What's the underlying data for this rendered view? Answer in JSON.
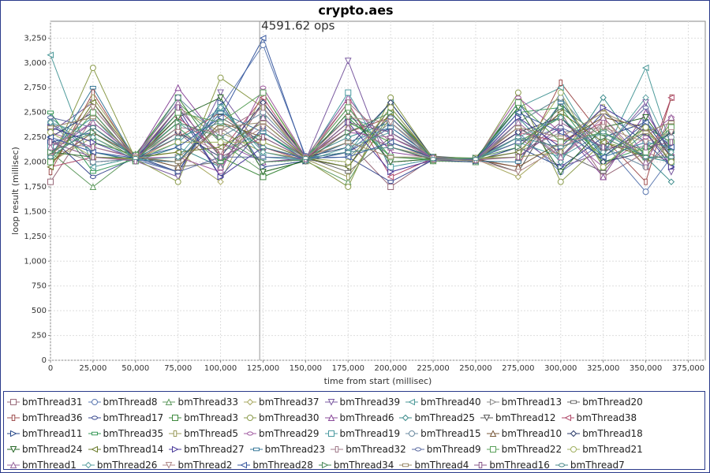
{
  "chart_data": {
    "type": "line",
    "title": "crypto.aes",
    "x_label": "time from start (millisec)",
    "y_label": "loop result (millisec)",
    "annotation": {
      "text": "4591.62 ops",
      "x": 123000
    },
    "grid": true,
    "xlim": [
      0,
      385000
    ],
    "ylim": [
      0,
      3420
    ],
    "xticks": [
      {
        "value": 0,
        "label": "0"
      },
      {
        "value": 25000,
        "label": "25,000"
      },
      {
        "value": 50000,
        "label": "50,000"
      },
      {
        "value": 75000,
        "label": "75,000"
      },
      {
        "value": 100000,
        "label": "100,000"
      },
      {
        "value": 125000,
        "label": "125,000"
      },
      {
        "value": 150000,
        "label": "150,000"
      },
      {
        "value": 175000,
        "label": "175,000"
      },
      {
        "value": 200000,
        "label": "200,000"
      },
      {
        "value": 225000,
        "label": "225,000"
      },
      {
        "value": 250000,
        "label": "250,000"
      },
      {
        "value": 275000,
        "label": "275,000"
      },
      {
        "value": 300000,
        "label": "300,000"
      },
      {
        "value": 325000,
        "label": "325,000"
      },
      {
        "value": 350000,
        "label": "350,000"
      },
      {
        "value": 375000,
        "label": "375,000"
      }
    ],
    "yticks": [
      0,
      250,
      500,
      750,
      {
        "value": 1000,
        "label": "1,000"
      },
      {
        "value": 1250,
        "label": "1,250"
      },
      {
        "value": 1500,
        "label": "1,500"
      },
      {
        "value": 1750,
        "label": "1,750"
      },
      {
        "value": 2000,
        "label": "2,000"
      },
      {
        "value": 2250,
        "label": "2,250"
      },
      {
        "value": 2500,
        "label": "2,500"
      },
      {
        "value": 2750,
        "label": "2,750"
      },
      {
        "value": 3000,
        "label": "3,000"
      },
      {
        "value": 3250,
        "label": "3,250"
      }
    ],
    "x": [
      0,
      25000,
      50000,
      75000,
      100000,
      125000,
      150000,
      175000,
      200000,
      225000,
      250000,
      275000,
      300000,
      325000,
      350000,
      365000
    ],
    "series": [
      {
        "name": "bmThread31",
        "color": "#9a6b7b",
        "values": [
          1800,
          2450,
          2050,
          2300,
          1950,
          2600,
          2030,
          2200,
          1750,
          2040,
          2010,
          2150,
          2500,
          1850,
          2100,
          2000
        ]
      },
      {
        "name": "bmThread8",
        "color": "#5b78b0",
        "values": [
          2400,
          2100,
          2020,
          1900,
          2550,
          3180,
          2060,
          2450,
          2300,
          2030,
          2020,
          2300,
          1900,
          2200,
          1700,
          2050
        ]
      },
      {
        "name": "bmThread33",
        "color": "#5f9a5f",
        "values": [
          2100,
          1750,
          2080,
          2600,
          2200,
          1900,
          2010,
          1800,
          2500,
          2010,
          2000,
          2400,
          2650,
          1950,
          2300,
          2100
        ]
      },
      {
        "name": "bmThread37",
        "color": "#a8a860",
        "values": [
          2000,
          2250,
          2040,
          2100,
          1800,
          2700,
          2050,
          2350,
          2150,
          2050,
          2030,
          1850,
          2200,
          2450,
          1950,
          2250
        ]
      },
      {
        "name": "bmThread39",
        "color": "#7a5aa0",
        "values": [
          2300,
          2600,
          2010,
          1850,
          2700,
          2100,
          2020,
          3020,
          1900,
          2020,
          2040,
          2250,
          1950,
          2100,
          2600,
          1900
        ]
      },
      {
        "name": "bmThread40",
        "color": "#4d9a9a",
        "values": [
          3080,
          1950,
          2050,
          2400,
          2100,
          2300,
          2040,
          2100,
          2600,
          2040,
          2010,
          2550,
          2750,
          2050,
          2950,
          2150
        ]
      },
      {
        "name": "bmThread13",
        "color": "#888888",
        "values": [
          2150,
          2000,
          2030,
          2050,
          2350,
          2000,
          2030,
          2550,
          2000,
          2030,
          2020,
          2100,
          2300,
          2350,
          2050,
          2000
        ]
      },
      {
        "name": "bmThread20",
        "color": "#6a6a6a",
        "values": [
          2050,
          2350,
          2060,
          1950,
          2000,
          2450,
          2050,
          1900,
          2250,
          2060,
          2030,
          2350,
          2100,
          1900,
          2400,
          2050
        ]
      },
      {
        "name": "bmThread36",
        "color": "#a05050",
        "values": [
          1900,
          2700,
          2020,
          2250,
          2500,
          2150,
          2010,
          2300,
          2450,
          2040,
          2020,
          1950,
          2800,
          2250,
          1800,
          2650
        ]
      },
      {
        "name": "bmThread17",
        "color": "#3a4a90",
        "values": [
          2250,
          1850,
          2040,
          2500,
          1850,
          2350,
          2040,
          2050,
          1800,
          2020,
          2000,
          2600,
          2050,
          2500,
          2200,
          1950
        ]
      },
      {
        "name": "bmThread3",
        "color": "#3f8a3f",
        "values": [
          2350,
          2200,
          2070,
          2650,
          2050,
          1850,
          2030,
          2400,
          2200,
          2050,
          2040,
          2200,
          2450,
          2050,
          2350,
          2200
        ]
      },
      {
        "name": "bmThread30",
        "color": "#8a9a4a",
        "values": [
          2000,
          2950,
          2030,
          1800,
          2850,
          2550,
          2020,
          1750,
          2650,
          2030,
          2010,
          2700,
          1800,
          2200,
          2100,
          2350
        ]
      },
      {
        "name": "bmThread6",
        "color": "#8a4a9a",
        "values": [
          2100,
          2400,
          2050,
          2750,
          2200,
          2000,
          2040,
          2650,
          2100,
          2040,
          2030,
          2050,
          2350,
          1850,
          2500,
          2100
        ]
      },
      {
        "name": "bmThread25",
        "color": "#3a8a8a",
        "values": [
          2450,
          2100,
          2010,
          2150,
          1950,
          2450,
          2050,
          2250,
          2400,
          2020,
          2020,
          2450,
          2000,
          2650,
          2050,
          1800
        ]
      },
      {
        "name": "bmThread12",
        "color": "#5a5a5a",
        "values": [
          2050,
          2550,
          2040,
          2000,
          2450,
          2200,
          2030,
          1950,
          2550,
          2030,
          2040,
          1900,
          2600,
          2100,
          2300,
          2000
        ]
      },
      {
        "name": "bmThread38",
        "color": "#b04a6a",
        "values": [
          1950,
          2050,
          2020,
          2450,
          2100,
          2650,
          2020,
          2600,
          1850,
          2040,
          2030,
          2300,
          2200,
          2400,
          1950,
          2650
        ]
      },
      {
        "name": "bmThread11",
        "color": "#2a4a8a",
        "values": [
          2200,
          2300,
          2060,
          1900,
          2600,
          1950,
          2010,
          2100,
          2350,
          2050,
          2010,
          2150,
          1950,
          2250,
          2400,
          2050
        ]
      },
      {
        "name": "bmThread35",
        "color": "#3a9a5a",
        "values": [
          2500,
          1900,
          2030,
          2350,
          2000,
          2300,
          2040,
          2450,
          2050,
          2030,
          2020,
          2500,
          2550,
          2000,
          2150,
          2300
        ]
      },
      {
        "name": "bmThread5",
        "color": "#9a9a5a",
        "values": [
          2050,
          2650,
          2050,
          2550,
          2300,
          2100,
          2030,
          1850,
          2450,
          2020,
          2030,
          2050,
          2100,
          2550,
          2000,
          2100
        ]
      },
      {
        "name": "bmThread29",
        "color": "#a05aa0",
        "values": [
          2300,
          2150,
          2040,
          2050,
          1900,
          2750,
          2050,
          2300,
          2250,
          2040,
          2020,
          2650,
          2300,
          1950,
          2250,
          2450
        ]
      },
      {
        "name": "bmThread19",
        "color": "#4a9aa0",
        "values": [
          2150,
          2450,
          2010,
          2200,
          2550,
          2050,
          2020,
          2700,
          1950,
          2030,
          2040,
          2200,
          2050,
          2300,
          2050,
          2000
        ]
      },
      {
        "name": "bmThread15",
        "color": "#6a8aa0",
        "values": [
          2400,
          2000,
          2030,
          2650,
          2250,
          2500,
          2040,
          2050,
          2400,
          2050,
          2010,
          2400,
          2650,
          2150,
          1950,
          2250
        ]
      },
      {
        "name": "bmThread10",
        "color": "#7a5a3a",
        "values": [
          2000,
          2300,
          2060,
          1950,
          2400,
          2250,
          2030,
          2350,
          2150,
          2020,
          2030,
          1950,
          2200,
          2450,
          2350,
          2050
        ]
      },
      {
        "name": "bmThread18",
        "color": "#2a3a6a",
        "values": [
          2250,
          2500,
          2020,
          2300,
          2050,
          2600,
          2050,
          2150,
          2600,
          2040,
          2020,
          2300,
          2450,
          2000,
          2100,
          2300
        ]
      },
      {
        "name": "bmThread24",
        "color": "#2a6a2a",
        "values": [
          2100,
          2050,
          2040,
          2450,
          2650,
          1900,
          2010,
          2500,
          2000,
          2030,
          2040,
          2550,
          1900,
          2350,
          2450,
          2100
        ]
      },
      {
        "name": "bmThread14",
        "color": "#6a7a2a",
        "values": [
          1950,
          2600,
          2050,
          2100,
          2150,
          2400,
          2040,
          1950,
          2500,
          2050,
          2030,
          2100,
          2500,
          2200,
          2050,
          2400
        ]
      },
      {
        "name": "bmThread27",
        "color": "#4a3a9a",
        "values": [
          2350,
          2200,
          2030,
          2550,
          1850,
          2150,
          2030,
          2400,
          1900,
          2020,
          2020,
          2450,
          2150,
          2550,
          2300,
          1950
        ]
      },
      {
        "name": "bmThread23",
        "color": "#3a7a9a",
        "values": [
          2050,
          2750,
          2020,
          2000,
          2500,
          2300,
          2020,
          2200,
          2350,
          2040,
          2010,
          2000,
          2600,
          2050,
          2200,
          2150
        ]
      },
      {
        "name": "bmThread32",
        "color": "#a07a8a",
        "values": [
          2200,
          2150,
          2050,
          2350,
          2300,
          2550,
          2050,
          2600,
          2200,
          2030,
          2040,
          2350,
          2050,
          2400,
          1950,
          2200
        ]
      },
      {
        "name": "bmThread9",
        "color": "#5a6aa0",
        "values": [
          2450,
          2350,
          2040,
          1900,
          2050,
          2050,
          2040,
          2100,
          2450,
          2050,
          2030,
          2200,
          2350,
          2150,
          2550,
          2050
        ]
      },
      {
        "name": "bmThread22",
        "color": "#5aa05a",
        "values": [
          2000,
          2500,
          2010,
          2500,
          2400,
          2700,
          2030,
          2550,
          2050,
          2020,
          2020,
          2600,
          2200,
          2300,
          2100,
          2350
        ]
      },
      {
        "name": "bmThread21",
        "color": "#a0b060",
        "values": [
          2300,
          2050,
          2030,
          2200,
          2200,
          2200,
          2040,
          2000,
          2550,
          2040,
          2040,
          2050,
          2700,
          1950,
          2350,
          2000
        ]
      },
      {
        "name": "bmThread1",
        "color": "#9a6aa0",
        "values": [
          2150,
          2400,
          2060,
          2600,
          1950,
          2450,
          2050,
          2350,
          2150,
          2030,
          2030,
          2400,
          2050,
          2450,
          2000,
          2450
        ]
      },
      {
        "name": "bmThread26",
        "color": "#5aa0a0",
        "values": [
          2400,
          2250,
          2020,
          2050,
          2550,
          2100,
          2010,
          2150,
          2300,
          2050,
          2010,
          2250,
          2450,
          2100,
          2650,
          2100
        ]
      },
      {
        "name": "bmThread2",
        "color": "#b08a8a",
        "values": [
          2050,
          2550,
          2050,
          2300,
          2100,
          2350,
          2030,
          2450,
          2400,
          2020,
          2020,
          1900,
          2150,
          2350,
          2200,
          2300
        ]
      },
      {
        "name": "bmThread28",
        "color": "#3a5aa0",
        "values": [
          2250,
          2100,
          2040,
          2150,
          2450,
          3250,
          2040,
          2050,
          2200,
          2040,
          2030,
          2500,
          2300,
          2050,
          2400,
          2150
        ]
      },
      {
        "name": "bmThread34",
        "color": "#4a8a5a",
        "values": [
          2100,
          2300,
          2030,
          2400,
          2250,
          2000,
          2020,
          2300,
          2500,
          2030,
          2040,
          2150,
          2550,
          2250,
          2050,
          2050
        ]
      },
      {
        "name": "bmThread4",
        "color": "#9a8a6a",
        "values": [
          2350,
          2450,
          2050,
          2000,
          2350,
          2400,
          2050,
          2200,
          2050,
          2050,
          2010,
          2350,
          2250,
          2500,
          2300,
          2400
        ]
      },
      {
        "name": "bmThread16",
        "color": "#8a5a8a",
        "values": [
          2200,
          2050,
          2010,
          2550,
          2050,
          2250,
          2030,
          2400,
          2300,
          2040,
          2020,
          2050,
          2400,
          2150,
          2150,
          2200
        ]
      },
      {
        "name": "bmThread7",
        "color": "#4a8a8a",
        "values": [
          2050,
          2350,
          2040,
          2250,
          2400,
          2150,
          2040,
          2100,
          2150,
          2030,
          2030,
          2250,
          2150,
          2300,
          2050,
          2050
        ]
      }
    ]
  }
}
